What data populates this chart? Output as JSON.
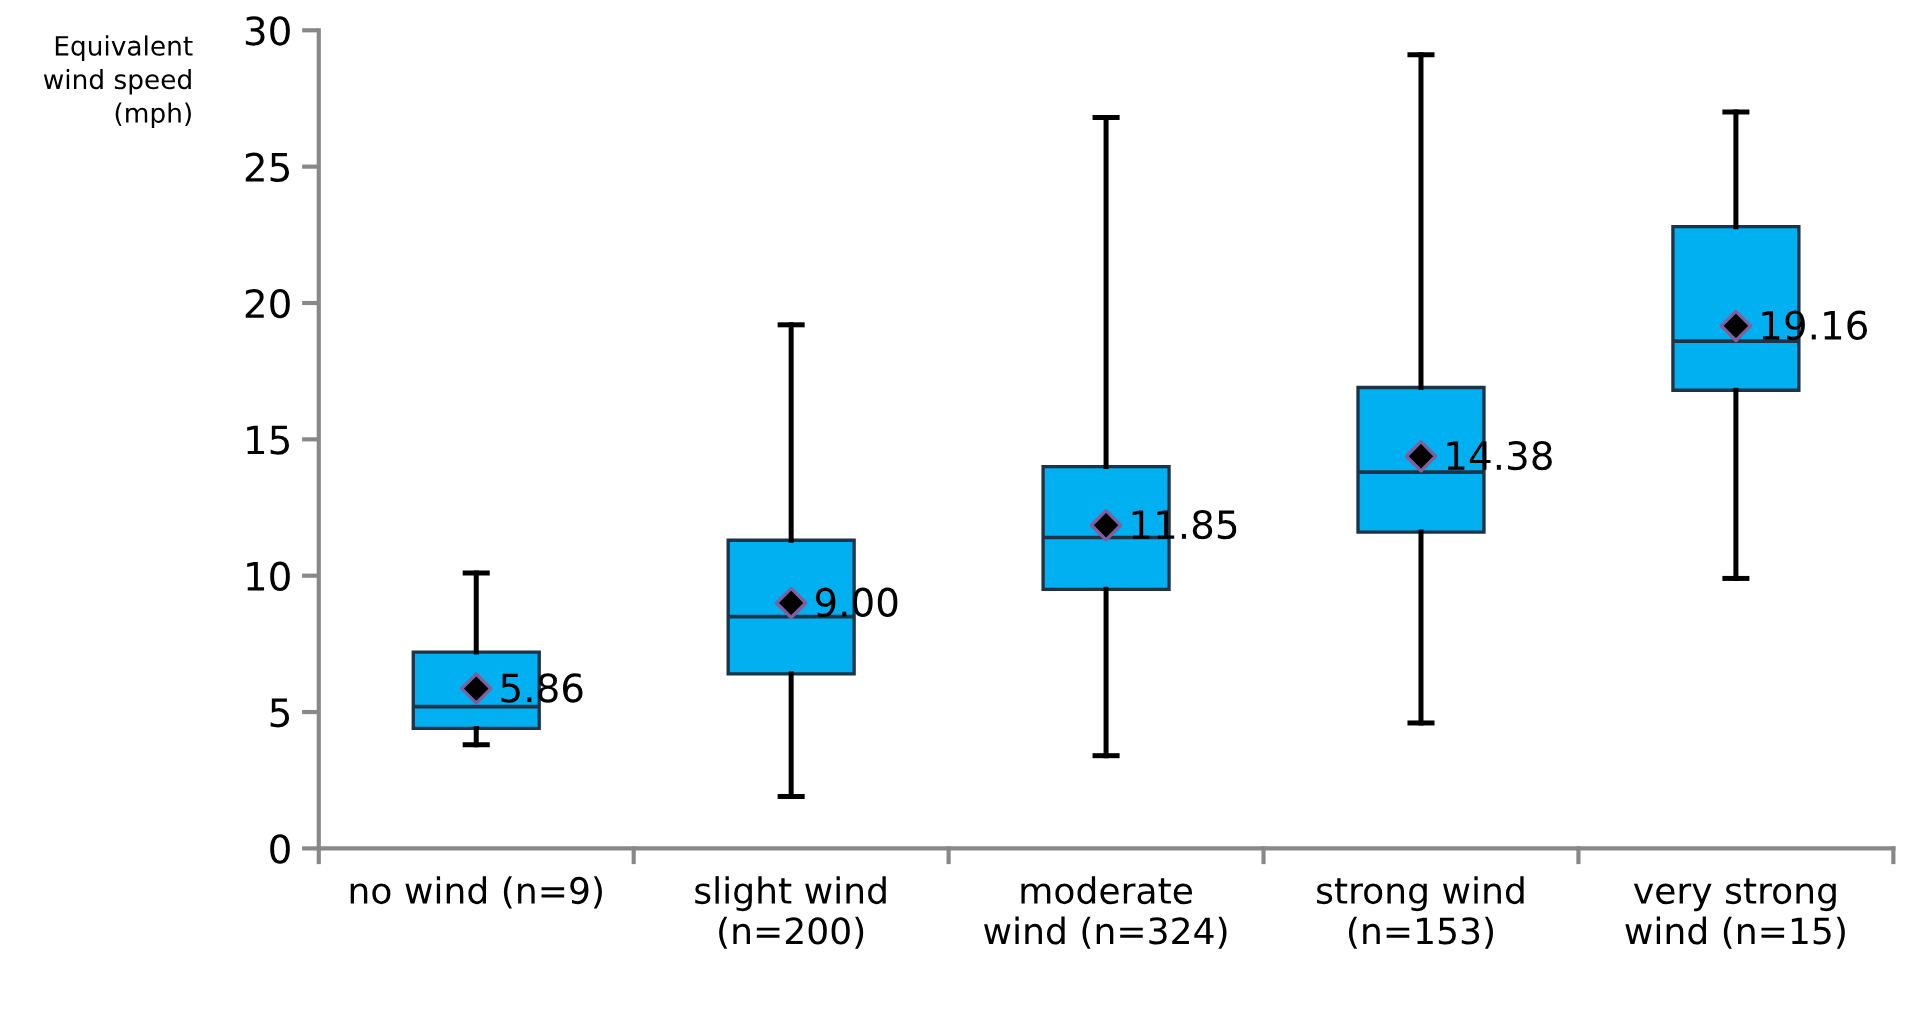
{
  "chart_data": {
    "type": "box",
    "ylabel": "Equivalent\nwind speed\n(mph)",
    "categories": [
      "no wind (n=9)",
      "slight wind\n(n=200)",
      "moderate\nwind (n=324)",
      "strong wind\n(n=153)",
      "very strong\nwind (n=15)"
    ],
    "boxes": [
      {
        "low": 3.8,
        "q1": 4.4,
        "median": 5.2,
        "q3": 7.2,
        "high": 10.1
      },
      {
        "low": 1.9,
        "q1": 6.4,
        "median": 8.5,
        "q3": 11.3,
        "high": 19.2
      },
      {
        "low": 3.4,
        "q1": 9.5,
        "median": 11.4,
        "q3": 14.0,
        "high": 26.8
      },
      {
        "low": 4.6,
        "q1": 11.6,
        "median": 13.8,
        "q3": 16.9,
        "high": 29.1
      },
      {
        "low": 9.9,
        "q1": 16.8,
        "median": 18.6,
        "q3": 22.8,
        "high": 27.0
      }
    ],
    "series": [
      {
        "type": "scatter",
        "color": "#000000",
        "marker": "diamond",
        "value_labels": [
          "5.86",
          "9.00",
          "11.85",
          "14.38",
          "19.16"
        ],
        "x": [
          "no wind (n=9)",
          "slight wind\n(n=200)",
          "moderate\nwind (n=324)",
          "strong wind\n(n=153)",
          "very strong\nwind (n=15)"
        ],
        "values": [
          5.86,
          9.0,
          11.85,
          14.38,
          19.16
        ]
      }
    ],
    "color": "#00b0f0",
    "grid": false,
    "ylim": [
      0,
      30
    ],
    "yticks": [
      0,
      5,
      10,
      15,
      20,
      25,
      30
    ]
  }
}
